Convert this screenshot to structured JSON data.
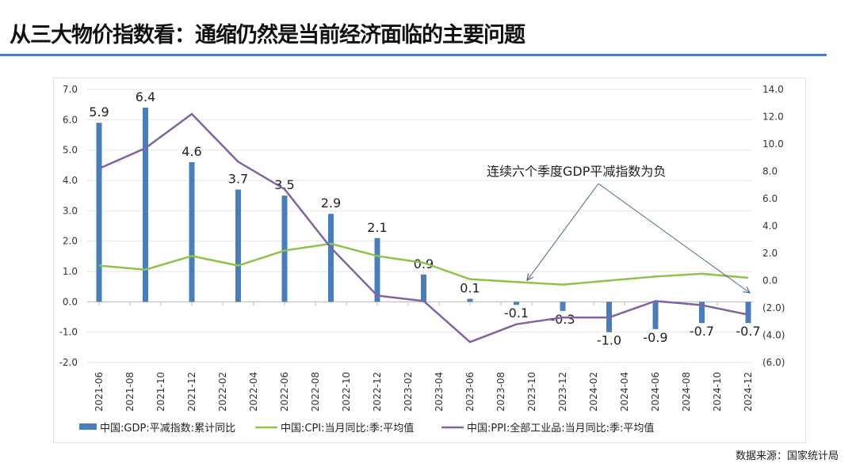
{
  "title": "从三大物价指数看：通缩仍然是当前经济面临的主要问题",
  "source": "数据来源：国家统计局",
  "chart_data": {
    "type": "bar+line",
    "x_ticks": [
      "2021-06",
      "2021-08",
      "2021-10",
      "2021-12",
      "2022-02",
      "2022-04",
      "2022-06",
      "2022-08",
      "2022-10",
      "2022-12",
      "2023-02",
      "2023-04",
      "2023-06",
      "2023-08",
      "2023-10",
      "2023-12",
      "2024-02",
      "2024-04",
      "2024-06",
      "2024-08",
      "2024-10",
      "2024-12"
    ],
    "left_axis": {
      "range": [
        -2,
        7
      ],
      "ticks": [
        "7.0",
        "6.0",
        "5.0",
        "4.0",
        "3.0",
        "2.0",
        "1.0",
        "0.0",
        "-1.0",
        "-2.0"
      ]
    },
    "right_axis": {
      "range": [
        -6,
        14
      ],
      "ticks": [
        "14.0",
        "12.0",
        "10.0",
        "8.0",
        "6.0",
        "4.0",
        "2.0",
        "0.0",
        "(2.0)",
        "(4.0)",
        "(6.0)"
      ]
    },
    "x": [
      "2021-06",
      "2021-09",
      "2021-12",
      "2022-03",
      "2022-06",
      "2022-09",
      "2022-12",
      "2023-03",
      "2023-06",
      "2023-09",
      "2023-12",
      "2024-03",
      "2024-06",
      "2024-09",
      "2024-12"
    ],
    "series": [
      {
        "name": "中国:GDP:平减指数:累计同比",
        "kind": "bar",
        "axis": "left",
        "color": "#4a7ebb",
        "values": [
          5.9,
          6.4,
          4.6,
          3.7,
          3.5,
          2.9,
          2.1,
          0.9,
          0.1,
          -0.1,
          -0.3,
          -1.0,
          -0.9,
          -0.7,
          -0.7
        ],
        "labels": [
          "5.9",
          "6.4",
          "4.6",
          "3.7",
          "3.5",
          "2.9",
          "2.1",
          "0.9",
          "0.1",
          "-0.1",
          "-0.3",
          "-1.0",
          "-0.9",
          "-0.7",
          "-0.7"
        ]
      },
      {
        "name": "中国:CPI:当月同比:季:平均值",
        "kind": "line",
        "axis": "right",
        "color": "#8dc34a",
        "values": [
          1.1,
          0.8,
          1.8,
          1.1,
          2.2,
          2.7,
          1.8,
          1.3,
          0.1,
          -0.1,
          -0.3,
          0.0,
          0.3,
          0.5,
          0.2
        ]
      },
      {
        "name": "中国:PPI:全部工业品:当月同比:季:平均值",
        "kind": "line",
        "axis": "right",
        "color": "#8064a2",
        "values": [
          8.2,
          9.7,
          12.2,
          8.7,
          6.7,
          2.4,
          -1.1,
          -1.5,
          -4.5,
          -3.2,
          -2.7,
          -2.7,
          -1.5,
          -1.8,
          -2.5
        ]
      }
    ],
    "annotation": "连续六个季度GDP平减指数为负",
    "legend_position": "bottom",
    "grid": true
  }
}
